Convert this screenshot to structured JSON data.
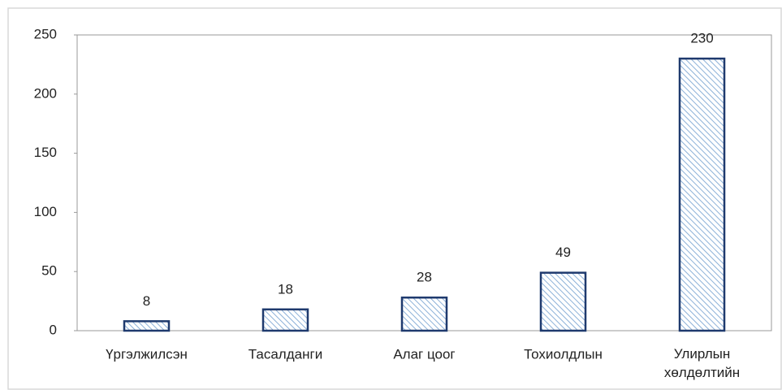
{
  "chart_data": {
    "type": "bar",
    "categories": [
      "Үргэлжилсэн",
      "Тасалданги",
      "Алаг цоог",
      "Тохиолдлын",
      "Улирлын хөлдөлтийн"
    ],
    "values": [
      8,
      18,
      28,
      49,
      230
    ],
    "color": "#1f3a6e",
    "ylim": [
      0,
      250
    ],
    "yticks": [
      0,
      50,
      100,
      150,
      200,
      250
    ],
    "grid": false
  }
}
